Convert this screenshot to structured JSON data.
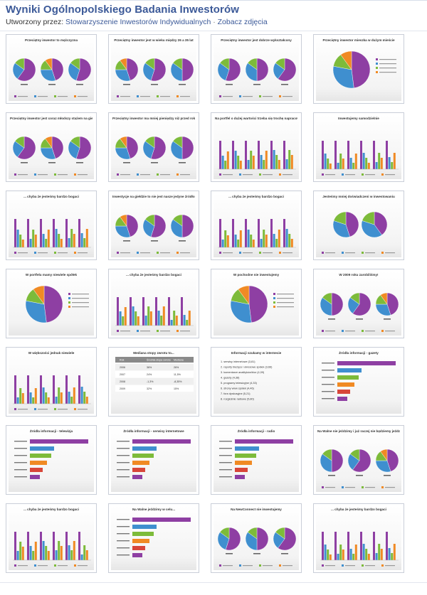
{
  "header": {
    "title": "Wyniki Ogólnopolskiego Badania Inwestorów",
    "created_by_label": "Utworzony przez:",
    "author_link": "Stowarzyszenie Inwestorów Indywidualnych",
    "separator": "·",
    "view_photos_link": "Zobacz zdjęcia"
  },
  "colors": {
    "purple": "#8e3fa3",
    "blue": "#3f8fcf",
    "green": "#7dbb3a",
    "orange": "#f08a24",
    "red": "#d8463a",
    "link": "#3b5998"
  },
  "thumbnails": [
    {
      "caption": "Przeciętny inwestor to mężczyzna",
      "kind": "pies"
    },
    {
      "caption": "Przeciętny inwestor jest w wieku między 26 a 35 lat",
      "kind": "pies"
    },
    {
      "caption": "Przeciętny inwestor jest dobrze wykształcony",
      "kind": "pies"
    },
    {
      "caption": "Przeciętny inwestor mieszka w dużym mieście",
      "kind": "pie"
    },
    {
      "caption": "Przeciętny inwestor jest coraz młodszy stażem na giełdzie",
      "kind": "pies"
    },
    {
      "caption": "Przeciętny inwestor ma mniej pieniędzy niż przed rokiem",
      "kind": "pies"
    },
    {
      "caption": "Na portfel o dużej wartości trzeba się trochę napracować",
      "kind": "bars"
    },
    {
      "caption": "Inwestujemy samodzielnie",
      "kind": "bars"
    },
    {
      "caption": "... chyba że jesteśmy bardzo bogaci",
      "kind": "bars"
    },
    {
      "caption": "Inwestycje na giełdzie to nie jest nasze jedyne źródło utrzymania",
      "kind": "pies"
    },
    {
      "caption": "... chyba że jesteśmy bardzo bogaci",
      "kind": "bars"
    },
    {
      "caption": "Jesteśmy mniej doświadczeni w inwestowaniu",
      "kind": "pies2"
    },
    {
      "caption": "W portfelu mamy niewiele spółek",
      "kind": "pie"
    },
    {
      "caption": "... chyba że jesteśmy bardzo bogaci",
      "kind": "bars"
    },
    {
      "caption": "W pochodne nie inwestujemy",
      "kind": "pie"
    },
    {
      "caption": "W 2009 roku zarobiliśmy!",
      "kind": "pies"
    },
    {
      "caption": "W większości jednak niewiele",
      "kind": "bars"
    },
    {
      "caption": "Mediana stopy zwrotu to...",
      "kind": "table"
    },
    {
      "caption": "Informacji szukamy w internecie",
      "kind": "list"
    },
    {
      "caption": "Źródła informacji - gazety",
      "kind": "hbars"
    },
    {
      "caption": "Źródła informacji - telewizja",
      "kind": "hbars"
    },
    {
      "caption": "Źródła informacji - serwisy internetowe",
      "kind": "hbars"
    },
    {
      "caption": "Źródła informacji - radio",
      "kind": "hbars"
    },
    {
      "caption": "Na Walne nie jeździmy i już raczej nie będziemy jeździć",
      "kind": "pies"
    },
    {
      "caption": "... chyba że jesteśmy bardzo bogaci",
      "kind": "bars"
    },
    {
      "caption": "Na Walne jeździmy w celu...",
      "kind": "hbars"
    },
    {
      "caption": "Na NewConnect nie inwestujemy",
      "kind": "pies"
    },
    {
      "caption": "... chyba że jesteśmy bardzo bogaci",
      "kind": "bars"
    }
  ],
  "mediana_table": {
    "headers": [
      "Rok",
      "Średnia stopa zwrotu",
      "Mediana"
    ],
    "rows": [
      [
        "2006",
        "36%",
        "26%"
      ],
      [
        "2007",
        "24%",
        "11,5%"
      ],
      [
        "2008",
        "-1,3%",
        "-8,35%"
      ],
      [
        "2009",
        "32%",
        "15%"
      ]
    ]
  },
  "internet_list": [
    "1. serwisy internetowe (3,81)",
    "2. raporty bieżące i okresowe spółek (3,66)",
    "3. komentarze analityków/biur (4,09)",
    "4. gazety (4,38)",
    "5. programy telewizyjne (4,33)",
    "6. strony www spółek (4,46)",
    "7. fora dyskusyjne (5,21)",
    "8. rozgłośnie radiowe (5,80)"
  ]
}
